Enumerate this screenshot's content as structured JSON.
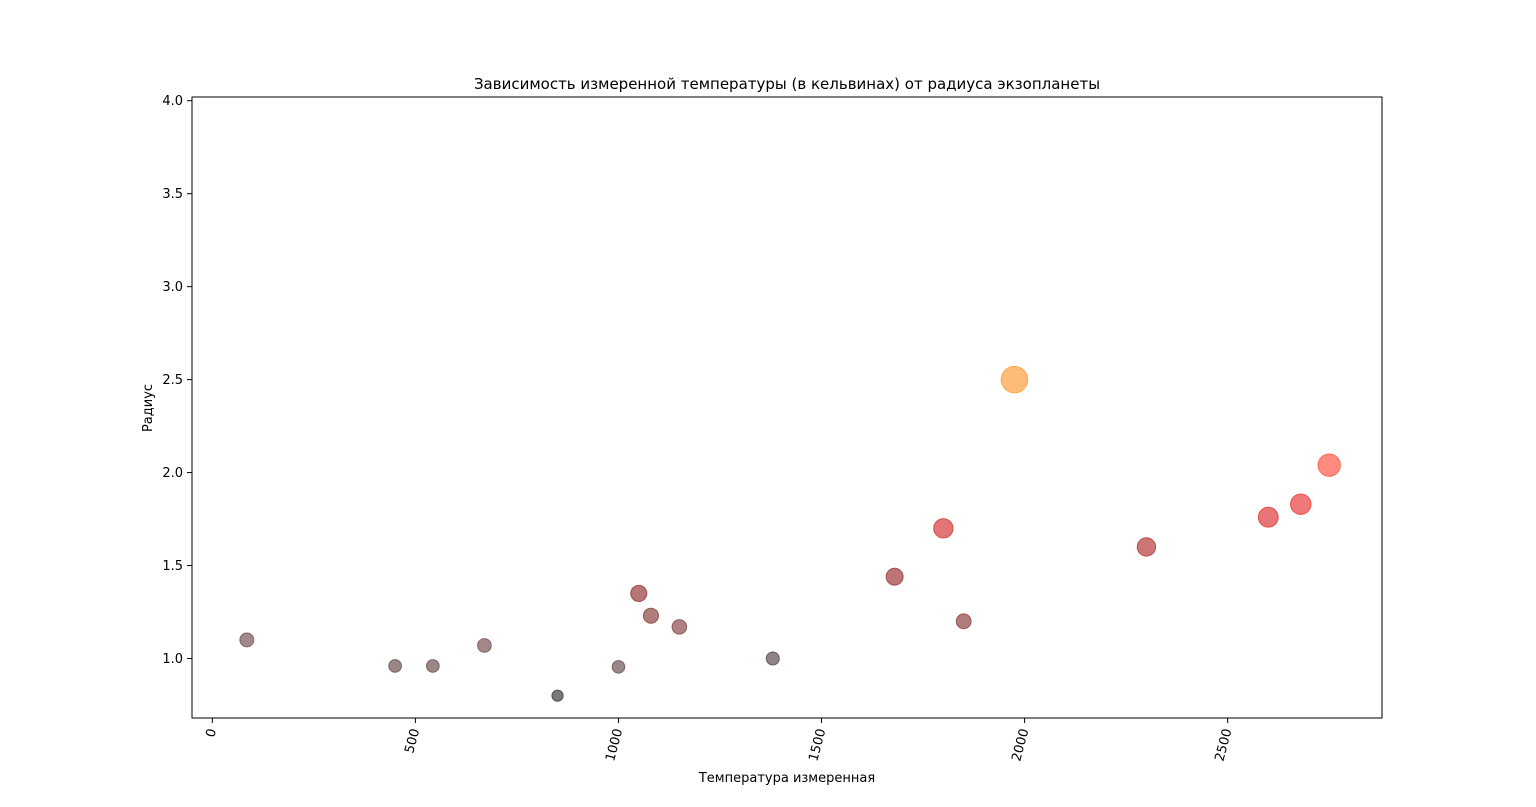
{
  "chart_data": {
    "type": "scatter",
    "title": "Зависимость измеренной температуры (в кельвинах) от радиуса экзопланеты",
    "xlabel": "Температура измеренная",
    "ylabel": "Радиус",
    "xlim": [
      -50,
      2880
    ],
    "ylim": [
      0.68,
      4.02
    ],
    "xticks": [
      0,
      500,
      1000,
      1500,
      2000,
      2500
    ],
    "xtick_labels": [
      "0",
      "500",
      "1000",
      "1500",
      "2000",
      "2500"
    ],
    "yticks": [
      1.0,
      1.5,
      2.0,
      2.5,
      3.0,
      3.5,
      4.0
    ],
    "ytick_labels": [
      "1.0",
      "1.5",
      "2.0",
      "2.5",
      "3.0",
      "3.5",
      "4.0"
    ],
    "grid": false,
    "points": [
      {
        "x": 85,
        "y": 1.1,
        "color": "#7a5555"
      },
      {
        "x": 450,
        "y": 0.96,
        "color": "#6e5454"
      },
      {
        "x": 543,
        "y": 0.96,
        "color": "#6e5454"
      },
      {
        "x": 670,
        "y": 1.07,
        "color": "#7a5555"
      },
      {
        "x": 850,
        "y": 0.8,
        "color": "#3f3f3f"
      },
      {
        "x": 1000,
        "y": 0.955,
        "color": "#6e5454"
      },
      {
        "x": 1050,
        "y": 1.35,
        "color": "#9a3a3a"
      },
      {
        "x": 1080,
        "y": 1.23,
        "color": "#8e4444"
      },
      {
        "x": 1150,
        "y": 1.17,
        "color": "#8a4c4c"
      },
      {
        "x": 1380,
        "y": 1.0,
        "color": "#5e4e4e"
      },
      {
        "x": 1680,
        "y": 1.44,
        "color": "#a03c3c"
      },
      {
        "x": 1800,
        "y": 1.7,
        "color": "#d63a3a"
      },
      {
        "x": 1850,
        "y": 1.2,
        "color": "#8e4444"
      },
      {
        "x": 1975,
        "y": 2.5,
        "color": "#ff9f40"
      },
      {
        "x": 2300,
        "y": 1.6,
        "color": "#b83c3c"
      },
      {
        "x": 2600,
        "y": 1.76,
        "color": "#e03c3c"
      },
      {
        "x": 2680,
        "y": 1.83,
        "color": "#e8403c"
      },
      {
        "x": 2750,
        "y": 2.04,
        "color": "#ff5a4a"
      }
    ]
  }
}
